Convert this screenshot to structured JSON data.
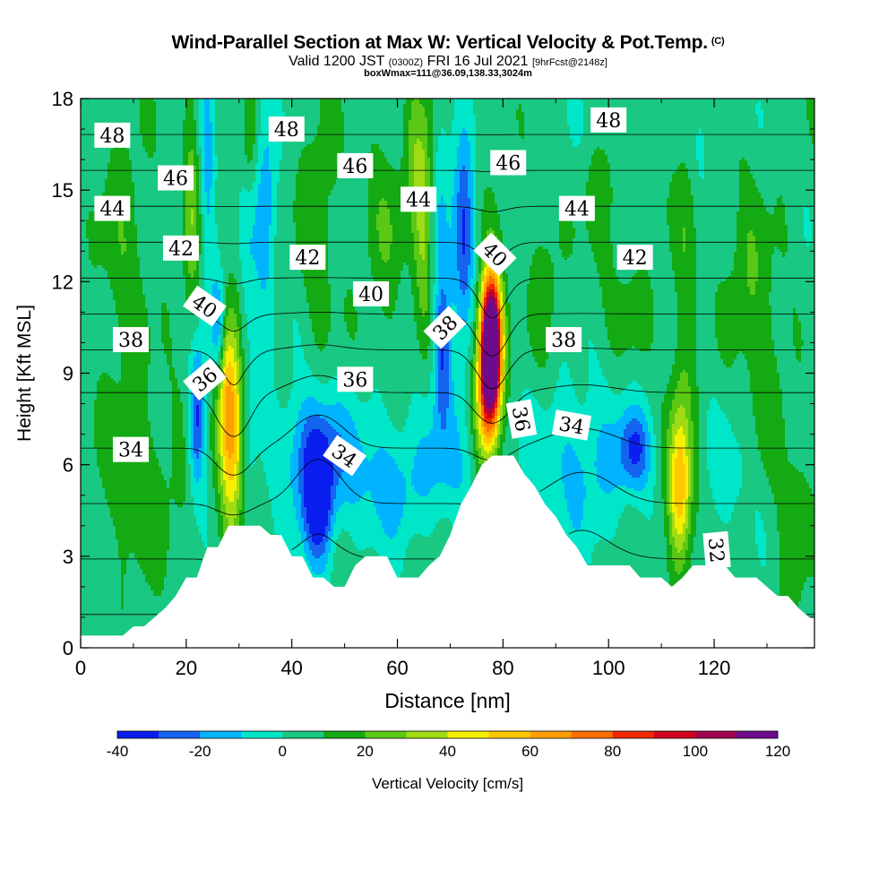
{
  "header": {
    "title": "Wind-Parallel Section at Max W: Vertical Velocity & Pot.Temp.",
    "title_mark": "(C)",
    "subtitle_main": "Valid 1200 JST",
    "subtitle_utc": "(0300Z)",
    "subtitle_date": "FRI 16 Jul 2021",
    "subtitle_fcst": "[9hrFcst@2148z]",
    "box_info": "boxWmax=111@36.09,138.33,3024m"
  },
  "chart_data": {
    "type": "heatmap",
    "xlabel": "Distance [nm]",
    "ylabel": "Height [Kft MSL]",
    "xlim": [
      0,
      139
    ],
    "ylim": [
      0,
      18
    ],
    "xticks": [
      0,
      20,
      40,
      60,
      80,
      100,
      120
    ],
    "yticks": [
      0,
      3,
      6,
      9,
      12,
      15,
      18
    ],
    "colorbar": {
      "label": "Vertical Velocity [cm/s]",
      "min": -40,
      "max": 120,
      "step": 10,
      "tick_values": [
        -40,
        -20,
        0,
        20,
        40,
        60,
        80,
        100,
        120
      ],
      "colors": [
        "#0a1ef0",
        "#1464f0",
        "#00b4ff",
        "#00e6c8",
        "#19c882",
        "#14aa14",
        "#5ac814",
        "#a0dc14",
        "#f5f000",
        "#ffc800",
        "#ffa000",
        "#ff6e00",
        "#f02800",
        "#d2001e",
        "#a00050",
        "#6e0a8c"
      ]
    },
    "terrain_kft": {
      "x": [
        0,
        2,
        4,
        6,
        8,
        10,
        12,
        14,
        16,
        18,
        20,
        22,
        24,
        26,
        28,
        30,
        32,
        34,
        36,
        38,
        40,
        42,
        44,
        46,
        48,
        50,
        52,
        54,
        56,
        58,
        60,
        62,
        64,
        66,
        68,
        70,
        72,
        74,
        76,
        78,
        80,
        82,
        84,
        86,
        88,
        90,
        92,
        94,
        96,
        98,
        100,
        102,
        104,
        106,
        108,
        110,
        112,
        114,
        116,
        118,
        120,
        122,
        124,
        126,
        128,
        130,
        132,
        134,
        136,
        138,
        139
      ],
      "height": [
        0.4,
        0.4,
        0.4,
        0.4,
        0.4,
        0.7,
        0.7,
        1.0,
        1.3,
        1.7,
        2.3,
        2.3,
        3.3,
        3.3,
        4.0,
        4.0,
        4.0,
        4.0,
        3.7,
        3.7,
        3.0,
        3.0,
        2.3,
        2.3,
        2.0,
        2.0,
        2.7,
        3.0,
        3.0,
        3.0,
        2.3,
        2.3,
        2.3,
        2.7,
        3.0,
        3.7,
        4.7,
        5.3,
        6.0,
        6.3,
        6.3,
        6.3,
        5.7,
        5.3,
        4.7,
        4.3,
        3.7,
        3.3,
        2.7,
        2.7,
        2.7,
        2.7,
        2.7,
        2.3,
        2.3,
        2.3,
        2.0,
        2.3,
        2.7,
        2.7,
        2.7,
        2.7,
        2.3,
        2.3,
        2.3,
        2.0,
        1.7,
        1.7,
        1.3,
        1.0,
        1.0
      ]
    },
    "wind_cells": [
      {
        "x": 28.8,
        "y": 7.0,
        "sx": 1.6,
        "sy": 2.2,
        "w": 55
      },
      {
        "x": 27.5,
        "y": 8.5,
        "sx": 1.2,
        "sy": 1.8,
        "w": 25
      },
      {
        "x": 22.0,
        "y": 7.5,
        "sx": 1.1,
        "sy": 1.6,
        "w": -40
      },
      {
        "x": 26.0,
        "y": 10.5,
        "sx": 0.9,
        "sy": 1.2,
        "w": -28
      },
      {
        "x": 31.5,
        "y": 10.0,
        "sx": 1.2,
        "sy": 4.0,
        "w": -14
      },
      {
        "x": 45.0,
        "y": 4.8,
        "sx": 2.0,
        "sy": 1.5,
        "w": -44
      },
      {
        "x": 43.0,
        "y": 6.5,
        "sx": 4.0,
        "sy": 1.5,
        "w": -18
      },
      {
        "x": 52.0,
        "y": 6.0,
        "sx": 9.0,
        "sy": 1.6,
        "w": -16
      },
      {
        "x": 60.0,
        "y": 5.0,
        "sx": 4.0,
        "sy": 1.2,
        "w": -10
      },
      {
        "x": 77.8,
        "y": 9.5,
        "sx": 1.3,
        "sy": 1.6,
        "w": 120
      },
      {
        "x": 77.6,
        "y": 10.5,
        "sx": 1.5,
        "sy": 1.5,
        "w": 60
      },
      {
        "x": 76.5,
        "y": 8.0,
        "sx": 1.4,
        "sy": 1.5,
        "w": 35
      },
      {
        "x": 68.5,
        "y": 9.8,
        "sx": 1.2,
        "sy": 1.7,
        "w": -35
      },
      {
        "x": 72.5,
        "y": 13.5,
        "sx": 1.4,
        "sy": 2.3,
        "w": -38
      },
      {
        "x": 70.0,
        "y": 6.0,
        "sx": 3.5,
        "sy": 1.6,
        "w": -14
      },
      {
        "x": 65.0,
        "y": 14.5,
        "sx": 1.2,
        "sy": 2.5,
        "w": 30
      },
      {
        "x": 95.0,
        "y": 6.0,
        "sx": 7.0,
        "sy": 1.8,
        "w": -18
      },
      {
        "x": 105.0,
        "y": 6.5,
        "sx": 2.2,
        "sy": 0.9,
        "w": -30
      },
      {
        "x": 113.5,
        "y": 5.0,
        "sx": 1.4,
        "sy": 1.6,
        "w": 42
      },
      {
        "x": 113.5,
        "y": 6.5,
        "sx": 1.8,
        "sy": 2.5,
        "w": 18
      },
      {
        "x": 123.0,
        "y": 5.5,
        "sx": 3.0,
        "sy": 1.5,
        "w": -10
      },
      {
        "x": 12.0,
        "y": 5.5,
        "sx": 6.0,
        "sy": 2.5,
        "w": 10
      },
      {
        "x": 35.0,
        "y": 14.5,
        "sx": 1.4,
        "sy": 3.0,
        "w": -22
      },
      {
        "x": 24.0,
        "y": 15.0,
        "sx": 1.0,
        "sy": 3.0,
        "w": -18
      },
      {
        "x": 21.0,
        "y": 14.0,
        "sx": 1.1,
        "sy": 3.0,
        "w": 20
      },
      {
        "x": 32.0,
        "y": 16.5,
        "sx": 1.0,
        "sy": 1.5,
        "w": 14
      },
      {
        "x": 68.5,
        "y": 15.5,
        "sx": 1.4,
        "sy": 3.0,
        "w": -12
      },
      {
        "x": 63.0,
        "y": 16.5,
        "sx": 1.0,
        "sy": 2.0,
        "w": 14
      },
      {
        "x": 45.0,
        "y": 14.0,
        "sx": 2.5,
        "sy": 3.0,
        "w": 12
      },
      {
        "x": 58.0,
        "y": 13.5,
        "sx": 3.0,
        "sy": 2.5,
        "w": 12
      },
      {
        "x": 8.0,
        "y": 13.0,
        "sx": 3.0,
        "sy": 3.0,
        "w": 12
      },
      {
        "x": 115.0,
        "y": 14.5,
        "sx": 1.5,
        "sy": 3.5,
        "w": 14
      },
      {
        "x": 126.0,
        "y": 12.5,
        "sx": 2.5,
        "sy": 2.0,
        "w": 12
      },
      {
        "x": 99.0,
        "y": 15.5,
        "sx": 2.5,
        "sy": 2.5,
        "w": 11
      },
      {
        "x": 88.0,
        "y": 12.0,
        "sx": 2.0,
        "sy": 2.0,
        "w": 10
      },
      {
        "x": 105.0,
        "y": 11.0,
        "sx": 3.0,
        "sy": 1.0,
        "w": 10
      },
      {
        "x": 117.0,
        "y": 16.5,
        "sx": 2.0,
        "sy": 1.5,
        "w": -12
      },
      {
        "x": 99.0,
        "y": 17.5,
        "sx": 3.0,
        "sy": 1.2,
        "w": -10
      },
      {
        "x": 135.0,
        "y": 3.5,
        "sx": 2.0,
        "sy": 2.0,
        "w": 14
      },
      {
        "x": 130.0,
        "y": 9.5,
        "sx": 3.0,
        "sy": 2.5,
        "w": 10
      }
    ],
    "theta_levels": [
      32,
      33,
      34,
      35,
      36,
      37,
      38,
      39,
      40,
      41,
      42,
      43,
      44,
      45,
      46,
      47,
      48,
      49
    ],
    "theta_labels": [
      {
        "text": "48",
        "x": 6.0,
        "y": 16.8,
        "rot": 0
      },
      {
        "text": "48",
        "x": 39.0,
        "y": 17.0,
        "rot": 0
      },
      {
        "text": "48",
        "x": 100.0,
        "y": 17.3,
        "rot": 0
      },
      {
        "text": "46",
        "x": 18.0,
        "y": 15.4,
        "rot": 0
      },
      {
        "text": "46",
        "x": 52.0,
        "y": 15.8,
        "rot": 0
      },
      {
        "text": "46",
        "x": 81.0,
        "y": 15.9,
        "rot": 0
      },
      {
        "text": "44",
        "x": 6.0,
        "y": 14.4,
        "rot": 0
      },
      {
        "text": "44",
        "x": 64.0,
        "y": 14.7,
        "rot": 0
      },
      {
        "text": "44",
        "x": 94.0,
        "y": 14.4,
        "rot": 0
      },
      {
        "text": "42",
        "x": 19.0,
        "y": 13.1,
        "rot": 0
      },
      {
        "text": "42",
        "x": 43.0,
        "y": 12.8,
        "rot": 0
      },
      {
        "text": "42",
        "x": 105.0,
        "y": 12.8,
        "rot": 0
      },
      {
        "text": "40",
        "x": 23.5,
        "y": 11.2,
        "rot": 35
      },
      {
        "text": "40",
        "x": 55.0,
        "y": 11.6,
        "rot": 0
      },
      {
        "text": "40",
        "x": 78.5,
        "y": 12.9,
        "rot": 45
      },
      {
        "text": "38",
        "x": 9.5,
        "y": 10.1,
        "rot": 0
      },
      {
        "text": "38",
        "x": 69.0,
        "y": 10.5,
        "rot": -45
      },
      {
        "text": "38",
        "x": 91.5,
        "y": 10.1,
        "rot": 0
      },
      {
        "text": "36",
        "x": 23.5,
        "y": 8.8,
        "rot": -40
      },
      {
        "text": "36",
        "x": 52.0,
        "y": 8.8,
        "rot": 0
      },
      {
        "text": "36",
        "x": 83.5,
        "y": 7.5,
        "rot": 80
      },
      {
        "text": "34",
        "x": 9.5,
        "y": 6.5,
        "rot": 0
      },
      {
        "text": "34",
        "x": 50.0,
        "y": 6.3,
        "rot": 35
      },
      {
        "text": "34",
        "x": 93.0,
        "y": 7.3,
        "rot": 10
      },
      {
        "text": "32",
        "x": 120.5,
        "y": 3.2,
        "rot": 85
      }
    ]
  }
}
